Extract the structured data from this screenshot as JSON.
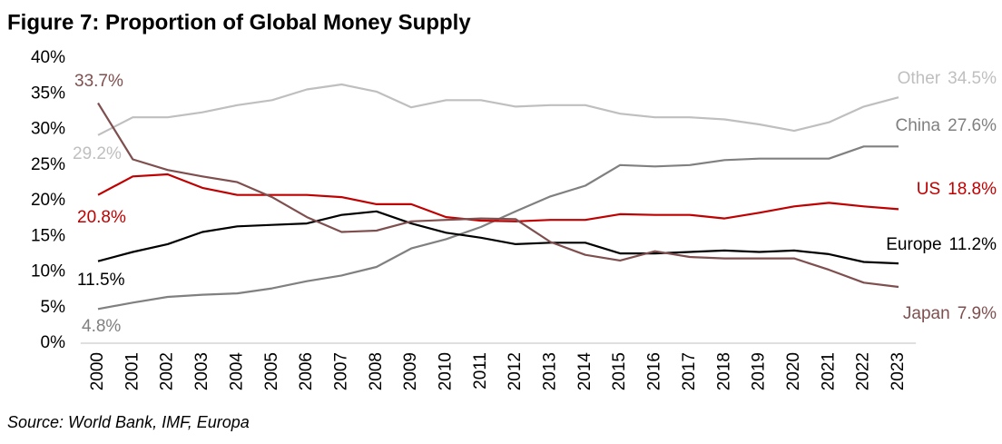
{
  "chart_data": {
    "type": "line",
    "title": "Figure 7: Proportion of Global Money Supply",
    "source": "Source: World Bank, IMF, Europa",
    "categories": [
      "2000",
      "2001",
      "2002",
      "2003",
      "2004",
      "2005",
      "2006",
      "2007",
      "2008",
      "2009",
      "2010",
      "2011",
      "2012",
      "2013",
      "2014",
      "2015",
      "2016",
      "2017",
      "2018",
      "2019",
      "2020",
      "2021",
      "2022",
      "2023"
    ],
    "ylim": [
      0,
      40
    ],
    "yticks": [
      {
        "value": 0,
        "label": "0%"
      },
      {
        "value": 5,
        "label": "5%"
      },
      {
        "value": 10,
        "label": "10%"
      },
      {
        "value": 15,
        "label": "15%"
      },
      {
        "value": 20,
        "label": "20%"
      },
      {
        "value": 25,
        "label": "25%"
      },
      {
        "value": 30,
        "label": "30%"
      },
      {
        "value": 35,
        "label": "35%"
      },
      {
        "value": 40,
        "label": "40%"
      }
    ],
    "grid": false,
    "series": [
      {
        "name": "Other",
        "color": "#bfbfbf",
        "values": [
          29.2,
          31.7,
          31.7,
          32.4,
          33.4,
          34.1,
          35.6,
          36.3,
          35.3,
          33.1,
          34.1,
          34.1,
          33.2,
          33.4,
          33.4,
          32.2,
          31.7,
          31.7,
          31.4,
          30.7,
          29.8,
          31.0,
          33.2,
          34.5
        ],
        "value_labels": [
          "29.2%",
          null,
          null,
          null,
          null,
          null,
          null,
          null,
          null,
          null,
          null,
          null,
          null,
          null,
          null,
          null,
          null,
          null,
          null,
          null,
          null,
          null,
          null,
          "34.5%"
        ]
      },
      {
        "name": "China",
        "color": "#808080",
        "values": [
          4.8,
          5.7,
          6.5,
          6.8,
          7.0,
          7.7,
          8.7,
          9.5,
          10.7,
          13.3,
          14.6,
          16.3,
          18.5,
          20.6,
          22.1,
          25.0,
          24.8,
          25.0,
          25.7,
          25.9,
          25.9,
          25.9,
          27.6,
          27.6
        ],
        "value_labels": [
          "4.8%",
          null,
          null,
          null,
          null,
          null,
          null,
          null,
          null,
          null,
          null,
          null,
          null,
          null,
          null,
          null,
          null,
          null,
          null,
          null,
          null,
          null,
          null,
          "27.6%"
        ]
      },
      {
        "name": "US",
        "color": "#c00000",
        "values": [
          20.8,
          23.4,
          23.7,
          21.8,
          20.8,
          20.8,
          20.8,
          20.5,
          19.5,
          19.5,
          17.7,
          17.2,
          17.1,
          17.3,
          17.3,
          18.1,
          18.0,
          18.0,
          17.5,
          18.3,
          19.2,
          19.7,
          19.2,
          18.8
        ],
        "value_labels": [
          "20.8%",
          null,
          null,
          null,
          null,
          null,
          null,
          null,
          null,
          null,
          null,
          null,
          null,
          null,
          null,
          null,
          null,
          null,
          null,
          null,
          null,
          null,
          null,
          "18.8%"
        ]
      },
      {
        "name": "Europe",
        "color": "#000000",
        "values": [
          11.5,
          12.8,
          13.9,
          15.6,
          16.4,
          16.6,
          16.8,
          18.0,
          18.5,
          16.8,
          15.5,
          14.8,
          13.9,
          14.1,
          14.1,
          12.6,
          12.6,
          12.8,
          13.0,
          12.8,
          13.0,
          12.5,
          11.4,
          11.2
        ],
        "value_labels": [
          "11.5%",
          null,
          null,
          null,
          null,
          null,
          null,
          null,
          null,
          null,
          null,
          null,
          null,
          null,
          null,
          null,
          null,
          null,
          null,
          null,
          null,
          null,
          null,
          "11.2%"
        ]
      },
      {
        "name": "Japan",
        "color": "#7f4f4f",
        "values": [
          33.7,
          25.8,
          24.3,
          23.4,
          22.6,
          20.5,
          17.7,
          15.6,
          15.8,
          17.1,
          17.3,
          17.5,
          17.4,
          14.2,
          12.4,
          11.6,
          12.9,
          12.1,
          11.9,
          11.9,
          11.9,
          10.3,
          8.5,
          7.9
        ],
        "value_labels": [
          "33.7%",
          null,
          null,
          null,
          null,
          null,
          null,
          null,
          null,
          null,
          null,
          null,
          null,
          null,
          null,
          null,
          null,
          null,
          null,
          null,
          null,
          null,
          null,
          "7.9%"
        ]
      }
    ]
  }
}
